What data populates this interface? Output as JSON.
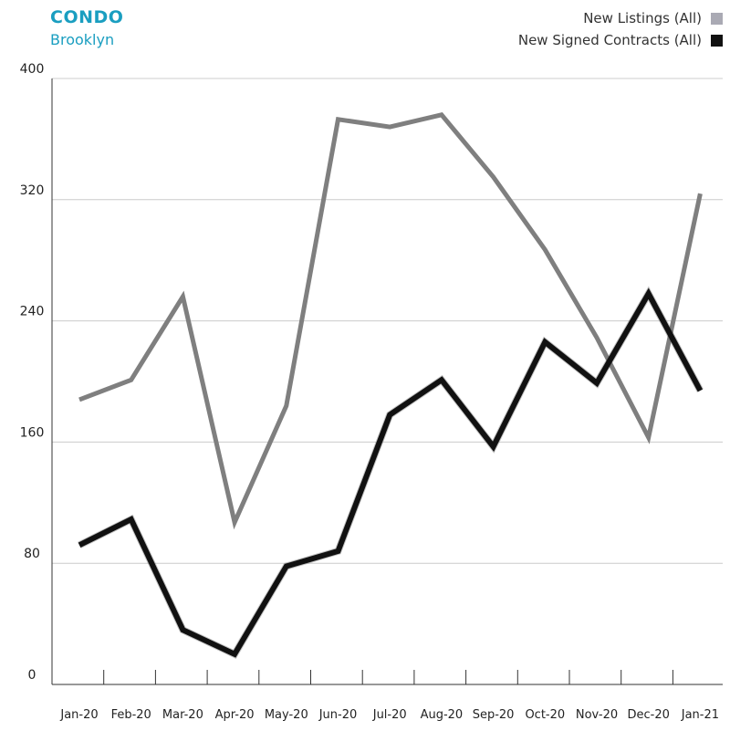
{
  "header": {
    "title": "CONDO",
    "subtitle": "Brooklyn"
  },
  "chart_data": {
    "type": "line",
    "title": "CONDO",
    "subtitle": "Brooklyn",
    "xlabel": "",
    "ylabel": "",
    "categories": [
      "Jan-20",
      "Feb-20",
      "Mar-20",
      "Apr-20",
      "May-20",
      "Jun-20",
      "Jul-20",
      "Aug-20",
      "Sep-20",
      "Oct-20",
      "Nov-20",
      "Dec-20",
      "Jan-21"
    ],
    "ylim": [
      0,
      400
    ],
    "yticks": [
      "0",
      "80",
      "160",
      "240",
      "320",
      "400"
    ],
    "grid": true,
    "legend_position": "top-right",
    "series": [
      {
        "name": "New Listings (All)",
        "color": "#7f7f7f",
        "swatch_color": "#aaaab4",
        "values": [
          188,
          201,
          256,
          107,
          184,
          373,
          368,
          376,
          335,
          287,
          229,
          163,
          324
        ]
      },
      {
        "name": "New Signed Contracts (All)",
        "color": "#111111",
        "swatch_color": "#111111",
        "values": [
          92,
          109,
          36,
          20,
          78,
          88,
          178,
          201,
          157,
          226,
          199,
          258,
          194
        ]
      }
    ]
  }
}
